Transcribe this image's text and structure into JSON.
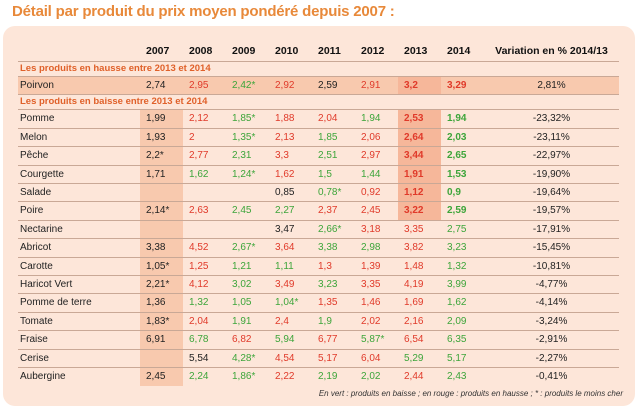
{
  "title": "Détail par produit du prix moyen pondéré depuis 2007 :",
  "columns": [
    "2007",
    "2008",
    "2009",
    "2010",
    "2011",
    "2012",
    "2013",
    "2014",
    "Variation en % 2014/13"
  ],
  "sections": [
    {
      "label": "Les produits en hausse entre 2013 et 2014",
      "rows": [
        {
          "name": "Poirvon",
          "highlight": true,
          "cells": [
            {
              "t": "2,74",
              "c": "k"
            },
            {
              "t": "2,95",
              "c": "r"
            },
            {
              "t": "2,42*",
              "c": "g"
            },
            {
              "t": "2,92",
              "c": "r"
            },
            {
              "t": "2,59",
              "c": "k"
            },
            {
              "t": "2,91",
              "c": "r"
            },
            {
              "t": "3,2",
              "c": "r",
              "b": true,
              "bg": true
            },
            {
              "t": "3,29",
              "c": "r",
              "b": true
            }
          ],
          "variation": "2,81%"
        }
      ]
    },
    {
      "label": "Les produits en baisse entre 2013 et 2014",
      "rows": [
        {
          "name": "Pomme",
          "cells": [
            {
              "t": "1,99",
              "c": "k"
            },
            {
              "t": "2,12",
              "c": "r"
            },
            {
              "t": "1,85*",
              "c": "g"
            },
            {
              "t": "1,88",
              "c": "r"
            },
            {
              "t": "2,04",
              "c": "r"
            },
            {
              "t": "1,94",
              "c": "g"
            },
            {
              "t": "2,53",
              "c": "r",
              "b": true,
              "bg": true
            },
            {
              "t": "1,94",
              "c": "g",
              "b": true
            }
          ],
          "variation": "-23,32%"
        },
        {
          "name": "Melon",
          "cells": [
            {
              "t": "1,93",
              "c": "k"
            },
            {
              "t": "2",
              "c": "r"
            },
            {
              "t": "1,35*",
              "c": "g"
            },
            {
              "t": "2,13",
              "c": "r"
            },
            {
              "t": "1,85",
              "c": "g"
            },
            {
              "t": "2,06",
              "c": "r"
            },
            {
              "t": "2,64",
              "c": "r",
              "b": true,
              "bg": true
            },
            {
              "t": "2,03",
              "c": "g",
              "b": true
            }
          ],
          "variation": "-23,11%"
        },
        {
          "name": "Pêche",
          "cells": [
            {
              "t": "2,2*",
              "c": "k"
            },
            {
              "t": "2,77",
              "c": "r"
            },
            {
              "t": "2,31",
              "c": "g"
            },
            {
              "t": "3,3",
              "c": "r"
            },
            {
              "t": "2,51",
              "c": "g"
            },
            {
              "t": "2,97",
              "c": "r"
            },
            {
              "t": "3,44",
              "c": "r",
              "b": true,
              "bg": true
            },
            {
              "t": "2,65",
              "c": "g",
              "b": true
            }
          ],
          "variation": "-22,97%"
        },
        {
          "name": "Courgette",
          "cells": [
            {
              "t": "1,71",
              "c": "k"
            },
            {
              "t": "1,62",
              "c": "g"
            },
            {
              "t": "1,24*",
              "c": "g"
            },
            {
              "t": "1,62",
              "c": "r"
            },
            {
              "t": "1,5",
              "c": "g"
            },
            {
              "t": "1,44",
              "c": "g"
            },
            {
              "t": "1,91",
              "c": "r",
              "b": true,
              "bg": true
            },
            {
              "t": "1,53",
              "c": "g",
              "b": true
            }
          ],
          "variation": "-19,90%"
        },
        {
          "name": "Salade",
          "cells": [
            {
              "t": "",
              "c": "k"
            },
            {
              "t": "",
              "c": "k"
            },
            {
              "t": "",
              "c": "k"
            },
            {
              "t": "0,85",
              "c": "k"
            },
            {
              "t": "0,78*",
              "c": "g"
            },
            {
              "t": "0,92",
              "c": "r"
            },
            {
              "t": "1,12",
              "c": "r",
              "b": true,
              "bg": true
            },
            {
              "t": "0,9",
              "c": "g",
              "b": true
            }
          ],
          "variation": "-19,64%"
        },
        {
          "name": "Poire",
          "cells": [
            {
              "t": "2,14*",
              "c": "k"
            },
            {
              "t": "2,63",
              "c": "r"
            },
            {
              "t": "2,45",
              "c": "g"
            },
            {
              "t": "2,27",
              "c": "g"
            },
            {
              "t": "2,37",
              "c": "r"
            },
            {
              "t": "2,45",
              "c": "r"
            },
            {
              "t": "3,22",
              "c": "r",
              "b": true,
              "bg": true
            },
            {
              "t": "2,59",
              "c": "g",
              "b": true
            }
          ],
          "variation": "-19,57%"
        },
        {
          "name": "Nectarine",
          "cells": [
            {
              "t": "",
              "c": "k"
            },
            {
              "t": "",
              "c": "k"
            },
            {
              "t": "",
              "c": "k"
            },
            {
              "t": "3,47",
              "c": "k"
            },
            {
              "t": "2,66*",
              "c": "g"
            },
            {
              "t": "3,18",
              "c": "r"
            },
            {
              "t": "3,35",
              "c": "r"
            },
            {
              "t": "2,75",
              "c": "g"
            }
          ],
          "variation": "-17,91%"
        },
        {
          "name": "Abricot",
          "cells": [
            {
              "t": "3,38",
              "c": "k"
            },
            {
              "t": "4,52",
              "c": "r"
            },
            {
              "t": "2,67*",
              "c": "g"
            },
            {
              "t": "3,64",
              "c": "r"
            },
            {
              "t": "3,38",
              "c": "g"
            },
            {
              "t": "2,98",
              "c": "g"
            },
            {
              "t": "3,82",
              "c": "r"
            },
            {
              "t": "3,23",
              "c": "g"
            }
          ],
          "variation": "-15,45%"
        },
        {
          "name": "Carotte",
          "cells": [
            {
              "t": "1,05*",
              "c": "k"
            },
            {
              "t": "1,25",
              "c": "r"
            },
            {
              "t": "1,21",
              "c": "g"
            },
            {
              "t": "1,11",
              "c": "g"
            },
            {
              "t": "1,3",
              "c": "r"
            },
            {
              "t": "1,39",
              "c": "r"
            },
            {
              "t": "1,48",
              "c": "r"
            },
            {
              "t": "1,32",
              "c": "g"
            }
          ],
          "variation": "-10,81%"
        },
        {
          "name": "Haricot Vert",
          "cells": [
            {
              "t": "2,21*",
              "c": "k"
            },
            {
              "t": "4,12",
              "c": "r"
            },
            {
              "t": "3,02",
              "c": "g"
            },
            {
              "t": "3,49",
              "c": "r"
            },
            {
              "t": "3,23",
              "c": "g"
            },
            {
              "t": "3,35",
              "c": "r"
            },
            {
              "t": "4,19",
              "c": "r"
            },
            {
              "t": "3,99",
              "c": "g"
            }
          ],
          "variation": "-4,77%"
        },
        {
          "name": "Pomme de terre",
          "cells": [
            {
              "t": "1,36",
              "c": "k"
            },
            {
              "t": "1,32",
              "c": "g"
            },
            {
              "t": "1,05",
              "c": "g"
            },
            {
              "t": "1,04*",
              "c": "g"
            },
            {
              "t": "1,35",
              "c": "r"
            },
            {
              "t": "1,46",
              "c": "r"
            },
            {
              "t": "1,69",
              "c": "r"
            },
            {
              "t": "1,62",
              "c": "g"
            }
          ],
          "variation": "-4,14%"
        },
        {
          "name": "Tomate",
          "cells": [
            {
              "t": "1,83*",
              "c": "k"
            },
            {
              "t": "2,04",
              "c": "r"
            },
            {
              "t": "1,91",
              "c": "g"
            },
            {
              "t": "2,4",
              "c": "r"
            },
            {
              "t": "1,9",
              "c": "g"
            },
            {
              "t": "2,02",
              "c": "r"
            },
            {
              "t": "2,16",
              "c": "r"
            },
            {
              "t": "2,09",
              "c": "g"
            }
          ],
          "variation": "-3,24%"
        },
        {
          "name": "Fraise",
          "cells": [
            {
              "t": "6,91",
              "c": "k"
            },
            {
              "t": "6,78",
              "c": "g"
            },
            {
              "t": "6,82",
              "c": "r"
            },
            {
              "t": "5,94",
              "c": "g"
            },
            {
              "t": "6,77",
              "c": "r"
            },
            {
              "t": "5,87*",
              "c": "g"
            },
            {
              "t": "6,54",
              "c": "r"
            },
            {
              "t": "6,35",
              "c": "g"
            }
          ],
          "variation": "-2,91%"
        },
        {
          "name": "Cerise",
          "cells": [
            {
              "t": "",
              "c": "k"
            },
            {
              "t": "5,54",
              "c": "k"
            },
            {
              "t": "4,28*",
              "c": "g"
            },
            {
              "t": "4,54",
              "c": "r"
            },
            {
              "t": "5,17",
              "c": "r"
            },
            {
              "t": "6,04",
              "c": "r"
            },
            {
              "t": "5,29",
              "c": "g"
            },
            {
              "t": "5,17",
              "c": "g"
            }
          ],
          "variation": "-2,27%"
        },
        {
          "name": "Aubergine",
          "cells": [
            {
              "t": "2,45",
              "c": "k"
            },
            {
              "t": "2,24",
              "c": "g"
            },
            {
              "t": "1,86*",
              "c": "g"
            },
            {
              "t": "2,22",
              "c": "r"
            },
            {
              "t": "2,19",
              "c": "g"
            },
            {
              "t": "2,02",
              "c": "g"
            },
            {
              "t": "2,44",
              "c": "r"
            },
            {
              "t": "2,43",
              "c": "g"
            }
          ],
          "variation": "-0,41%"
        }
      ]
    }
  ],
  "legend": "En vert : produits en baisse ; en rouge : produits en hausse ; * : produits le moins cher",
  "colors": {
    "accent": "#e8893a",
    "panel": "#fde6d9",
    "shade": "#f8c9ae",
    "green": "#3da53a",
    "red": "#e03a2a"
  }
}
